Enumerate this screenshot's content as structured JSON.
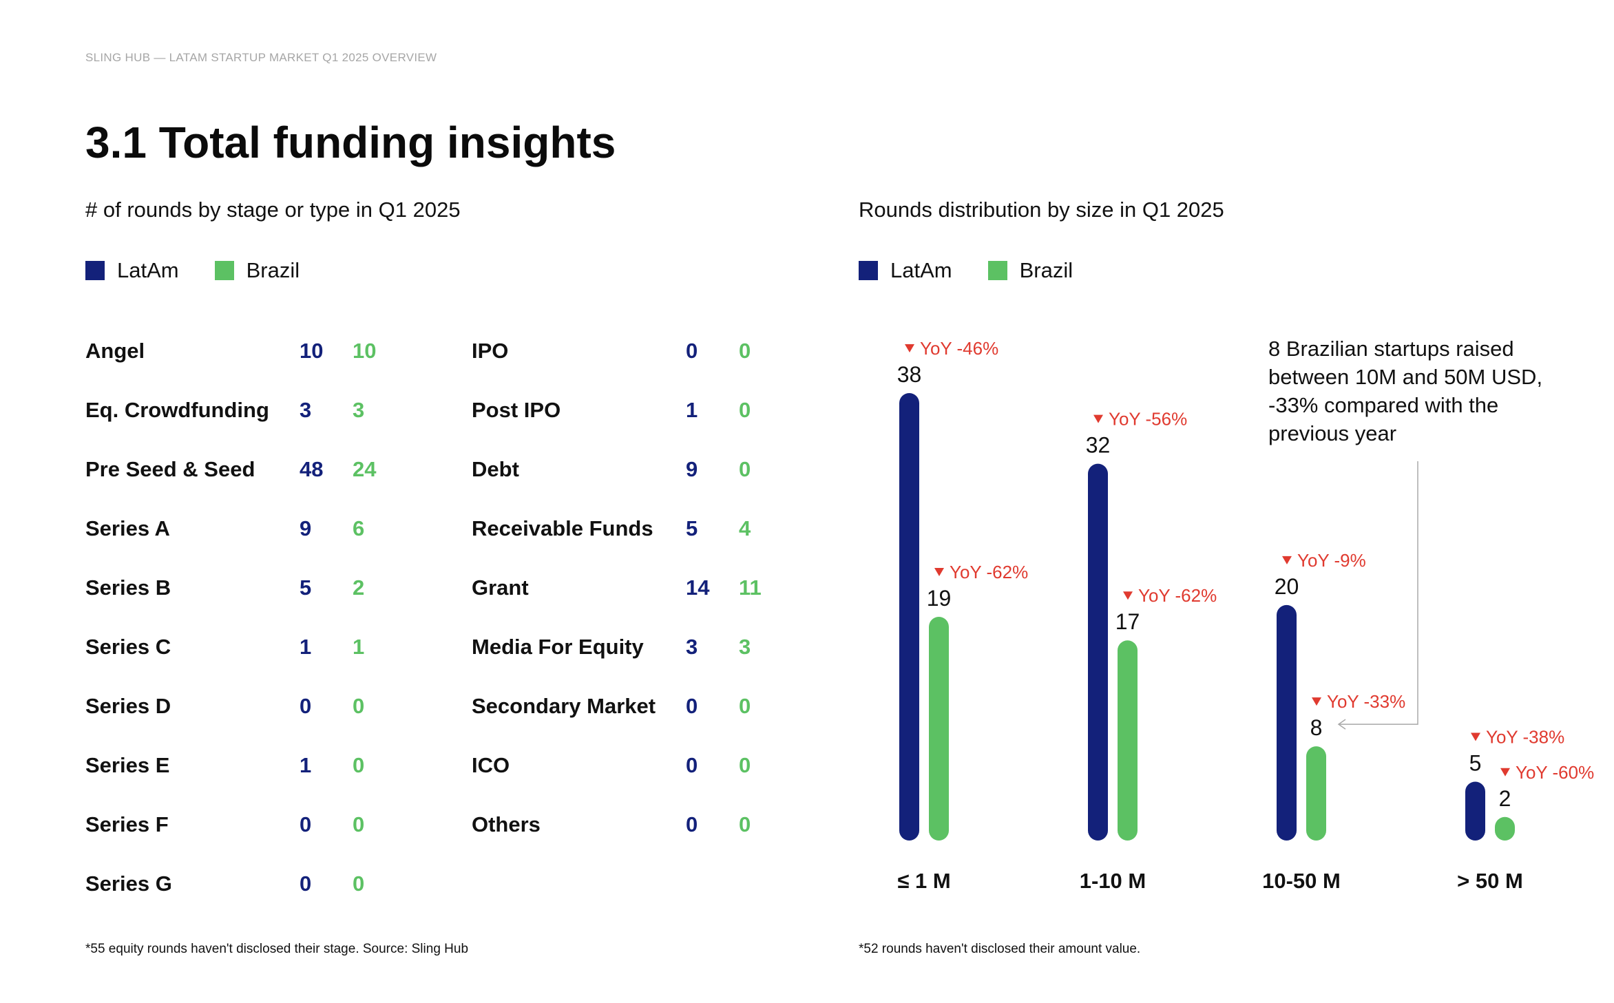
{
  "header": "SLING HUB  —  LATAM STARTUP MARKET Q1 2025 OVERVIEW",
  "title": "3.1 Total funding insights",
  "colors": {
    "latam": "#13217a",
    "brazil": "#5cc163",
    "decline": "#e03a2f"
  },
  "left_panel": {
    "subtitle": "# of rounds by stage or type in Q1 2025",
    "legend": [
      "LatAm",
      "Brazil"
    ],
    "columns": [
      [
        {
          "label": "Angel",
          "latam": "10",
          "brazil": "10"
        },
        {
          "label": "Eq. Crowdfunding",
          "latam": "3",
          "brazil": "3"
        },
        {
          "label": "Pre Seed & Seed",
          "latam": "48",
          "brazil": "24"
        },
        {
          "label": "Series A",
          "latam": "9",
          "brazil": "6"
        },
        {
          "label": "Series B",
          "latam": "5",
          "brazil": "2"
        },
        {
          "label": "Series C",
          "latam": "1",
          "brazil": "1"
        },
        {
          "label": "Series D",
          "latam": "0",
          "brazil": "0"
        },
        {
          "label": "Series E",
          "latam": "1",
          "brazil": "0"
        },
        {
          "label": "Series F",
          "latam": "0",
          "brazil": "0"
        },
        {
          "label": "Series G",
          "latam": "0",
          "brazil": "0"
        }
      ],
      [
        {
          "label": "IPO",
          "latam": "0",
          "brazil": "0"
        },
        {
          "label": "Post IPO",
          "latam": "1",
          "brazil": "0"
        },
        {
          "label": "Debt",
          "latam": "9",
          "brazil": "0"
        },
        {
          "label": "Receivable Funds",
          "latam": "5",
          "brazil": "4"
        },
        {
          "label": "Grant",
          "latam": "14",
          "brazil": "11"
        },
        {
          "label": "Media For Equity",
          "latam": "3",
          "brazil": "3"
        },
        {
          "label": "Secondary Market",
          "latam": "0",
          "brazil": "0"
        },
        {
          "label": "ICO",
          "latam": "0",
          "brazil": "0"
        },
        {
          "label": "Others",
          "latam": "0",
          "brazil": "0"
        }
      ]
    ],
    "footnote": "*55 equity rounds haven't disclosed their stage. Source: Sling Hub"
  },
  "right_panel": {
    "subtitle": "Rounds distribution by size in Q1 2025",
    "legend": [
      "LatAm",
      "Brazil"
    ],
    "annotation": "8 Brazilian startups raised between 10M and 50M USD, -33% compared with the previous year",
    "footnote": "*52 rounds haven't disclosed their amount value."
  },
  "chart_data": {
    "type": "bar",
    "categories": [
      "≤ 1 M",
      "1-10 M",
      "10-50 M",
      "> 50 M"
    ],
    "series": [
      {
        "name": "LatAm",
        "values": [
          38,
          32,
          20,
          5
        ],
        "yoy": [
          "YoY -46%",
          "YoY -56%",
          "YoY -9%",
          "YoY -38%"
        ]
      },
      {
        "name": "Brazil",
        "values": [
          19,
          17,
          8,
          2
        ],
        "yoy": [
          "YoY -62%",
          "YoY -62%",
          "YoY -33%",
          "YoY -60%"
        ]
      }
    ],
    "ylim": [
      0,
      38
    ],
    "grid": false,
    "legend_position": "top-left"
  }
}
